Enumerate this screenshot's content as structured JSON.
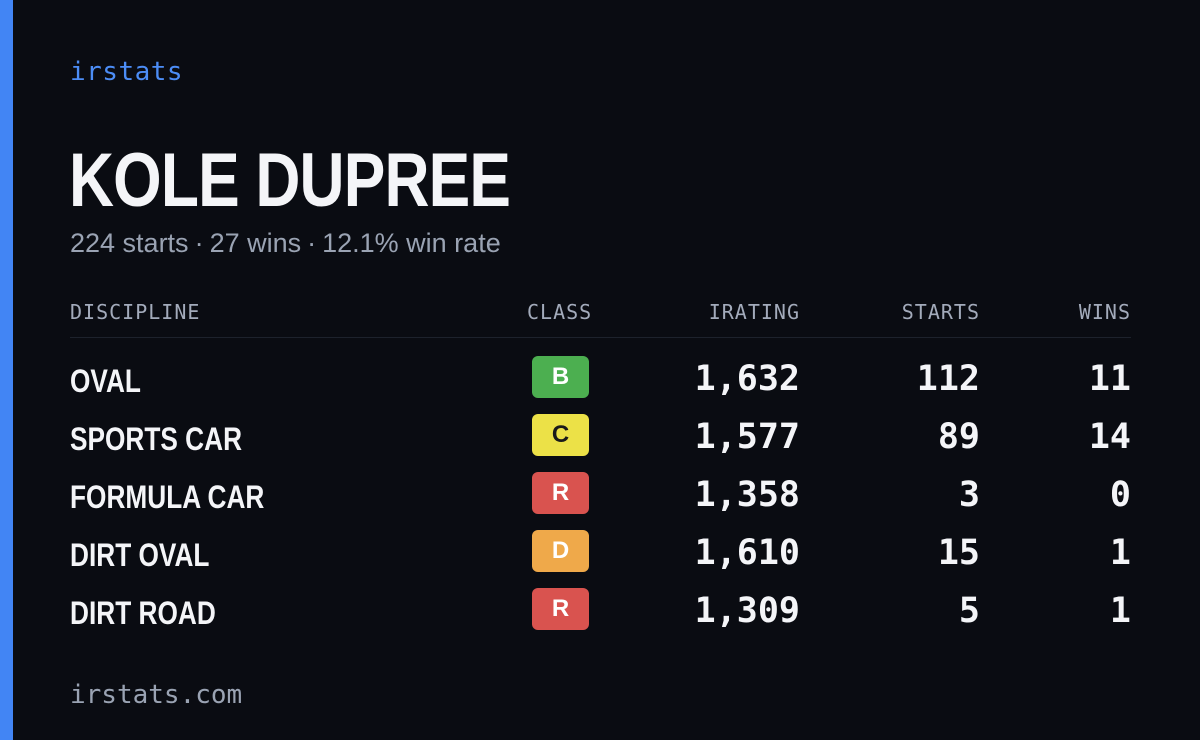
{
  "brand": "irstats",
  "driver": {
    "name": "KOLE DUPREE",
    "starts_text": "224 starts",
    "wins_text": "27 wins",
    "win_rate_text": "12.1% win rate",
    "separator": "·"
  },
  "table": {
    "headers": {
      "discipline": "DISCIPLINE",
      "class": "CLASS",
      "irating": "IRATING",
      "starts": "STARTS",
      "wins": "WINS"
    },
    "rows": [
      {
        "discipline": "OVAL",
        "class": "B",
        "class_color": "#4caf50",
        "irating": "1,632",
        "starts": "112",
        "wins": "11"
      },
      {
        "discipline": "SPORTS CAR",
        "class": "C",
        "class_color": "#ece147",
        "irating": "1,577",
        "starts": "89",
        "wins": "14"
      },
      {
        "discipline": "FORMULA CAR",
        "class": "R",
        "class_color": "#d9534f",
        "irating": "1,358",
        "starts": "3",
        "wins": "0"
      },
      {
        "discipline": "DIRT OVAL",
        "class": "D",
        "class_color": "#efa94a",
        "irating": "1,610",
        "starts": "15",
        "wins": "1"
      },
      {
        "discipline": "DIRT ROAD",
        "class": "R",
        "class_color": "#d9534f",
        "irating": "1,309",
        "starts": "5",
        "wins": "1"
      }
    ]
  },
  "footer": "irstats.com",
  "colors": {
    "accent": "#4285f4",
    "background": "#0a0c12"
  }
}
